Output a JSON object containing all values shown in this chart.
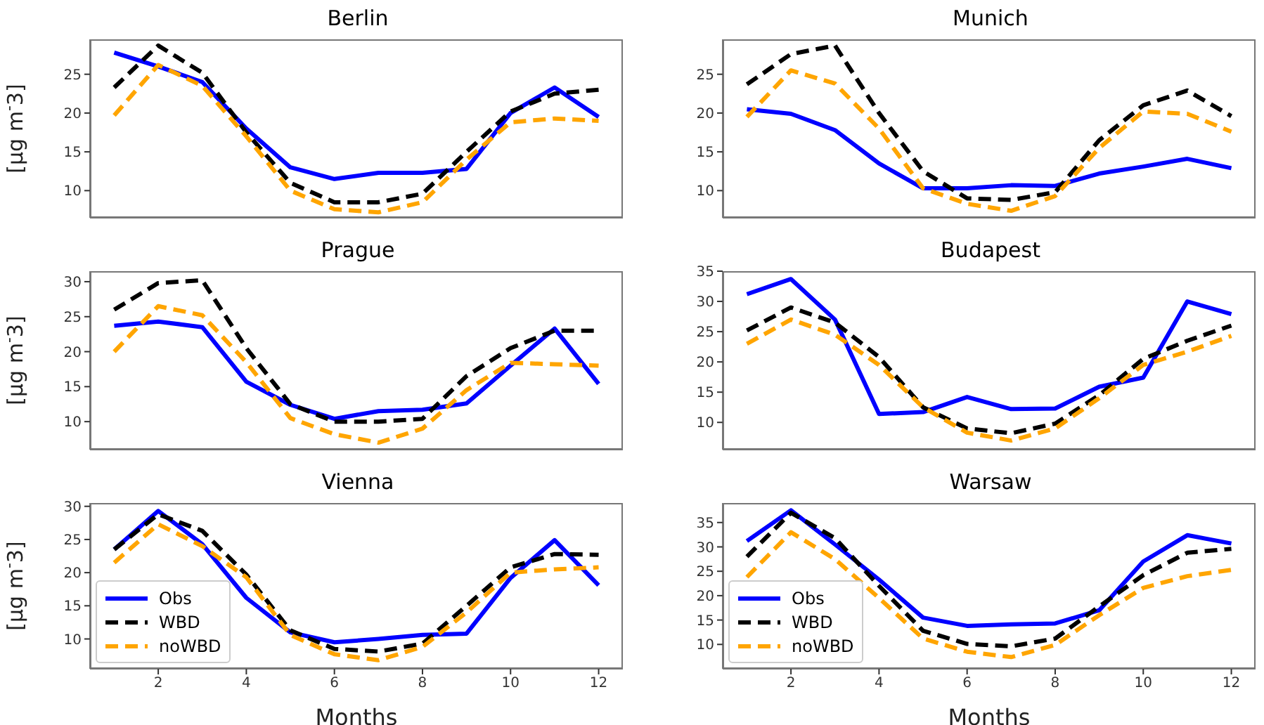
{
  "chart_data": [
    {
      "type": "line",
      "title": "Berlin",
      "ylabel": "[µg m$^{-}$3]",
      "x": [
        1,
        2,
        3,
        4,
        5,
        6,
        7,
        8,
        9,
        10,
        11,
        12
      ],
      "xlim": [
        0.45,
        12.55
      ],
      "xticks": [
        2,
        4,
        6,
        8,
        10,
        12
      ],
      "ylim": [
        6.5,
        29.5
      ],
      "yticks": [
        10,
        15,
        20,
        25
      ],
      "tick_labels": "y",
      "series": [
        {
          "color": "#0000ff",
          "line_style": "solid",
          "values": [
            27.8,
            26,
            24,
            18,
            13,
            11.5,
            12.3,
            12.3,
            12.8,
            20,
            23.3,
            19.5
          ]
        },
        {
          "color": "#000000",
          "line_style": "dashed",
          "values": [
            23.3,
            28.7,
            25.2,
            17.5,
            11,
            8.5,
            8.5,
            9.6,
            15,
            20.2,
            22.5,
            23
          ]
        },
        {
          "color": "#ffa500",
          "line_style": "dashed",
          "values": [
            19.7,
            26.2,
            23.5,
            17,
            10,
            7.6,
            7.2,
            8.5,
            14,
            18.8,
            19.3,
            19
          ]
        }
      ]
    },
    {
      "type": "line",
      "title": "Munich",
      "x": [
        1,
        2,
        3,
        4,
        5,
        6,
        7,
        8,
        9,
        10,
        11,
        12
      ],
      "xlim": [
        0.45,
        12.55
      ],
      "xticks": [
        2,
        4,
        6,
        8,
        10,
        12
      ],
      "ylim": [
        6.5,
        29.5
      ],
      "yticks": [
        10,
        15,
        20,
        25
      ],
      "tick_labels": "y",
      "series": [
        {
          "color": "#0000ff",
          "line_style": "solid",
          "values": [
            20.5,
            19.9,
            17.8,
            13.5,
            10.3,
            10.3,
            10.7,
            10.6,
            12.2,
            13.1,
            14.1,
            12.9
          ]
        },
        {
          "color": "#000000",
          "line_style": "dashed",
          "values": [
            23.7,
            27.6,
            28.7,
            20,
            12.5,
            9,
            8.8,
            9.8,
            16.5,
            21,
            22.9,
            19.6
          ]
        },
        {
          "color": "#ffa500",
          "line_style": "dashed",
          "values": [
            19.5,
            25.5,
            23.8,
            18,
            10.3,
            8.3,
            7.4,
            9.3,
            15.5,
            20.2,
            19.9,
            17.6
          ]
        }
      ]
    },
    {
      "type": "line",
      "title": "Prague",
      "ylabel": "[µg m$^{-}$3]",
      "x": [
        1,
        2,
        3,
        4,
        5,
        6,
        7,
        8,
        9,
        10,
        11,
        12
      ],
      "xlim": [
        0.45,
        12.55
      ],
      "xticks": [
        2,
        4,
        6,
        8,
        10,
        12
      ],
      "ylim": [
        6,
        31.5
      ],
      "yticks": [
        10,
        15,
        20,
        25,
        30
      ],
      "tick_labels": "y",
      "series": [
        {
          "color": "#0000ff",
          "line_style": "solid",
          "values": [
            23.7,
            24.3,
            23.5,
            15.7,
            12.4,
            10.4,
            11.5,
            11.7,
            12.6,
            18,
            23.3,
            15.4
          ]
        },
        {
          "color": "#000000",
          "line_style": "dashed",
          "values": [
            26,
            29.8,
            30.2,
            20.5,
            12.5,
            10,
            10,
            10.4,
            16.5,
            20.5,
            23,
            23
          ]
        },
        {
          "color": "#ffa500",
          "line_style": "dashed",
          "values": [
            20,
            26.5,
            25.2,
            18.5,
            10.5,
            8.2,
            7,
            9,
            14.5,
            18.4,
            18.2,
            18
          ]
        }
      ]
    },
    {
      "type": "line",
      "title": "Budapest",
      "x": [
        1,
        2,
        3,
        4,
        5,
        6,
        7,
        8,
        9,
        10,
        11,
        12
      ],
      "xlim": [
        0.45,
        12.55
      ],
      "xticks": [
        2,
        4,
        6,
        8,
        10,
        12
      ],
      "ylim": [
        5.5,
        35
      ],
      "yticks": [
        10,
        15,
        20,
        25,
        30,
        35
      ],
      "tick_labels": "y",
      "series": [
        {
          "color": "#0000ff",
          "line_style": "solid",
          "values": [
            31.2,
            33.7,
            27,
            11.4,
            11.7,
            14.2,
            12.2,
            12.3,
            15.9,
            17.4,
            30,
            27.9
          ]
        },
        {
          "color": "#000000",
          "line_style": "dashed",
          "values": [
            25.2,
            29,
            26.5,
            20.8,
            12.5,
            9,
            8.2,
            9.8,
            14.5,
            20.5,
            23.5,
            26
          ]
        },
        {
          "color": "#ffa500",
          "line_style": "dashed",
          "values": [
            23,
            27,
            24.5,
            19.5,
            12.5,
            8.3,
            7,
            9,
            14,
            19.5,
            21.7,
            24.3
          ]
        }
      ]
    },
    {
      "type": "line",
      "title": "Vienna",
      "xlabel": "Months",
      "ylabel": "[µg m$^{-}$3]",
      "legend": "bottom left",
      "x": [
        1,
        2,
        3,
        4,
        5,
        6,
        7,
        8,
        9,
        10,
        11,
        12
      ],
      "xlim": [
        0.45,
        12.55
      ],
      "xticks": [
        2,
        4,
        6,
        8,
        10,
        12
      ],
      "ylim": [
        5.5,
        30.5
      ],
      "yticks": [
        10,
        15,
        20,
        25,
        30
      ],
      "series": [
        {
          "name": "Obs",
          "color": "#0000ff",
          "line_style": "solid",
          "values": [
            23.5,
            29.3,
            24.3,
            16.2,
            11,
            9.5,
            10,
            10.6,
            10.8,
            19.2,
            24.9,
            18.1
          ]
        },
        {
          "name": "WBD",
          "color": "#000000",
          "line_style": "dashed",
          "values": [
            23.5,
            28.8,
            26.3,
            19.7,
            11.3,
            8.5,
            8.1,
            9.3,
            15,
            20.8,
            22.8,
            22.7
          ]
        },
        {
          "name": "noWBD",
          "color": "#ffa500",
          "line_style": "dashed",
          "values": [
            21.5,
            27.3,
            24,
            19.3,
            10.6,
            7.7,
            6.8,
            8.8,
            14,
            20,
            20.5,
            20.8
          ]
        }
      ]
    },
    {
      "type": "line",
      "title": "Warsaw",
      "xlabel": "Months",
      "legend": "bottom left",
      "x": [
        1,
        2,
        3,
        4,
        5,
        6,
        7,
        8,
        9,
        10,
        11,
        12
      ],
      "xlim": [
        0.45,
        12.55
      ],
      "xticks": [
        2,
        4,
        6,
        8,
        10,
        12
      ],
      "ylim": [
        5,
        39
      ],
      "yticks": [
        10,
        15,
        20,
        25,
        30,
        35
      ],
      "series": [
        {
          "name": "Obs",
          "color": "#0000ff",
          "line_style": "solid",
          "values": [
            31.2,
            37.5,
            30.5,
            23.3,
            15.5,
            13.8,
            14.1,
            14.3,
            17,
            27,
            32.4,
            30.7
          ]
        },
        {
          "name": "WBD",
          "color": "#000000",
          "line_style": "dashed",
          "values": [
            28,
            37,
            31.8,
            22,
            12.8,
            10.1,
            9.6,
            11.2,
            17.8,
            24.2,
            28.8,
            29.6
          ]
        },
        {
          "name": "noWBD",
          "color": "#ffa500",
          "line_style": "dashed",
          "values": [
            23.8,
            33,
            27.5,
            19.5,
            11.2,
            8.5,
            7.4,
            9.9,
            16,
            21.6,
            24,
            25.3
          ]
        }
      ]
    }
  ]
}
